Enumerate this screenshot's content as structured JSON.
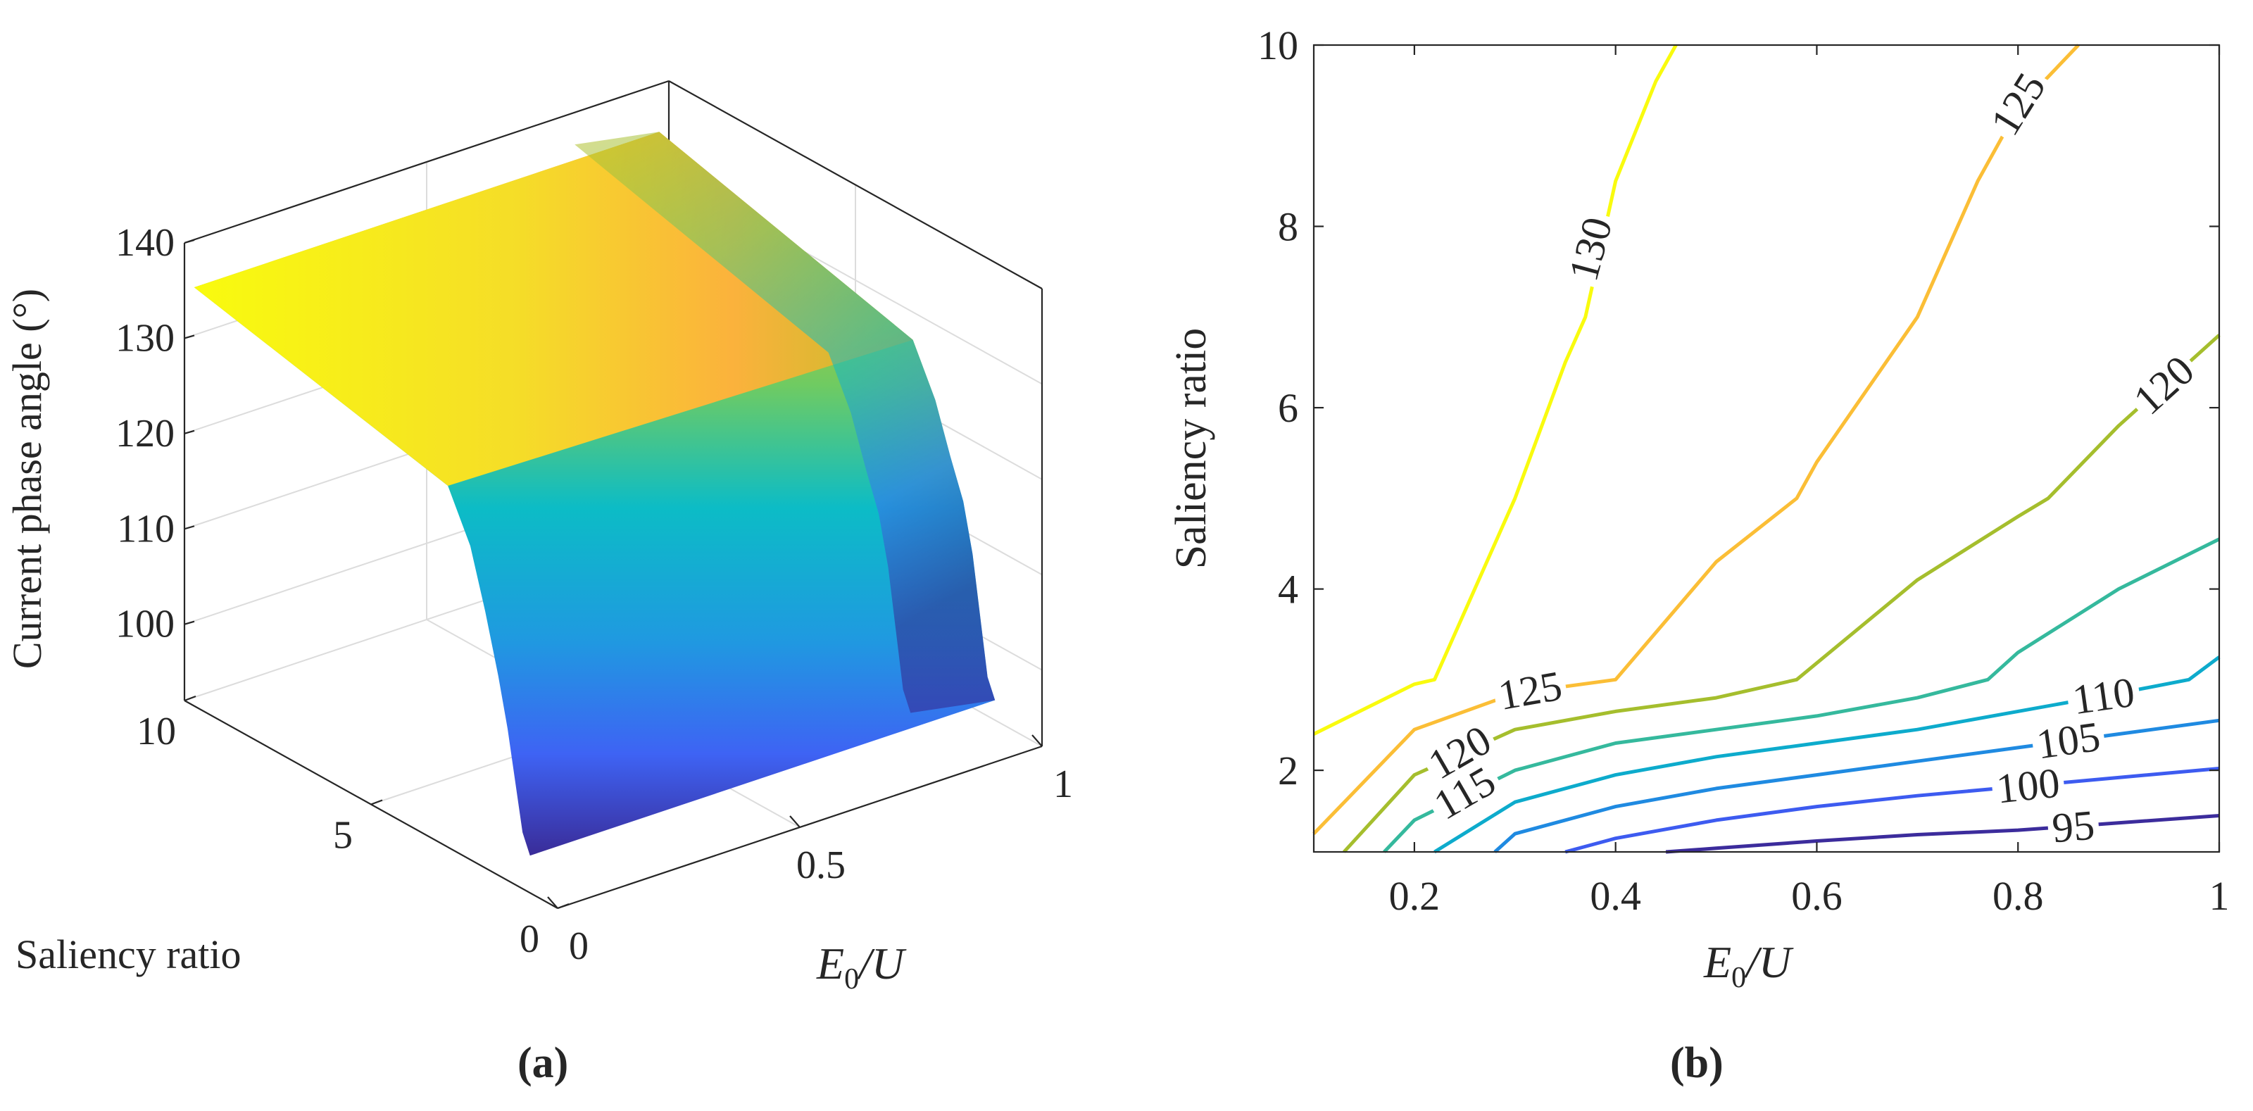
{
  "chart_data": [
    {
      "type": "surface",
      "panel_label": "(a)",
      "zlabel": "Current phase angle (°)",
      "xlabel_main": "E",
      "xlabel_sub": "0",
      "xlabel_tail": "/U",
      "ylabel": "Saliency ratio",
      "xlim": [
        0,
        1
      ],
      "ylim": [
        0,
        10
      ],
      "zlim": [
        92,
        140
      ],
      "z_ticks": [
        {
          "value": 100,
          "label": "100"
        },
        {
          "value": 110,
          "label": "110"
        },
        {
          "value": 120,
          "label": "120"
        },
        {
          "value": 130,
          "label": "130"
        },
        {
          "value": 140,
          "label": "140"
        }
      ],
      "x_ticks": [
        {
          "value": 0,
          "label": "0"
        },
        {
          "value": 0.5,
          "label": "0.5"
        },
        {
          "value": 1,
          "label": "1"
        }
      ],
      "y_ticks": [
        {
          "value": 0,
          "label": "0"
        },
        {
          "value": 5,
          "label": "5"
        },
        {
          "value": 10,
          "label": "10"
        }
      ],
      "surface_y": [
        10,
        3.2,
        2.6,
        2.2,
        1.85,
        1.6,
        1.4,
        1.2,
        1
      ],
      "surface_edge_x0": [
        135,
        129,
        124,
        118,
        112,
        107,
        102,
        97,
        95
      ],
      "surface_edge_x1": [
        135,
        128,
        123,
        118,
        114,
        109,
        103,
        97,
        95
      ],
      "colormap": "parula"
    },
    {
      "type": "contour",
      "panel_label": "(b)",
      "xlabel_main": "E",
      "xlabel_sub": "0",
      "xlabel_tail": "/U",
      "ylabel": "Saliency ratio",
      "xlim": [
        0.1,
        1
      ],
      "ylim": [
        1.1,
        10
      ],
      "x_ticks": [
        {
          "value": 0.2,
          "label": "0.2"
        },
        {
          "value": 0.4,
          "label": "0.4"
        },
        {
          "value": 0.6,
          "label": "0.6"
        },
        {
          "value": 0.8,
          "label": "0.8"
        },
        {
          "value": 1,
          "label": "1"
        }
      ],
      "y_ticks": [
        {
          "value": 2,
          "label": "2"
        },
        {
          "value": 4,
          "label": "4"
        },
        {
          "value": 6,
          "label": "6"
        },
        {
          "value": 8,
          "label": "8"
        },
        {
          "value": 10,
          "label": "10"
        }
      ],
      "series": [
        {
          "name": "130",
          "color": "#f9fb0e",
          "points": [
            [
              0.1,
              2.4
            ],
            [
              0.2,
              2.95
            ],
            [
              0.22,
              3.0
            ],
            [
              0.3,
              5.0
            ],
            [
              0.35,
              6.5
            ],
            [
              0.37,
              7.0
            ],
            [
              0.38,
              7.5
            ],
            [
              0.4,
              8.5
            ],
            [
              0.44,
              9.6
            ],
            [
              0.46,
              10
            ]
          ]
        },
        {
          "name": "125",
          "color": "#fbbe36",
          "points": [
            [
              0.1,
              1.3
            ],
            [
              0.2,
              2.45
            ],
            [
              0.3,
              2.85
            ],
            [
              0.4,
              3.0
            ],
            [
              0.5,
              4.3
            ],
            [
              0.58,
              5.0
            ],
            [
              0.6,
              5.4
            ],
            [
              0.7,
              7.0
            ],
            [
              0.76,
              8.5
            ],
            [
              0.8,
              9.3
            ],
            [
              0.86,
              10
            ]
          ]
        },
        {
          "name": "120",
          "color": "#a5be2d",
          "points": [
            [
              0.13,
              1.1
            ],
            [
              0.2,
              1.95
            ],
            [
              0.3,
              2.45
            ],
            [
              0.4,
              2.65
            ],
            [
              0.5,
              2.8
            ],
            [
              0.58,
              3.0
            ],
            [
              0.7,
              4.1
            ],
            [
              0.8,
              4.8
            ],
            [
              0.83,
              5.0
            ],
            [
              0.9,
              5.8
            ],
            [
              1.0,
              6.8
            ]
          ]
        },
        {
          "name": "115",
          "color": "#35b99d",
          "points": [
            [
              0.17,
              1.1
            ],
            [
              0.2,
              1.45
            ],
            [
              0.3,
              2.0
            ],
            [
              0.4,
              2.3
            ],
            [
              0.5,
              2.45
            ],
            [
              0.6,
              2.6
            ],
            [
              0.7,
              2.8
            ],
            [
              0.77,
              3.0
            ],
            [
              0.8,
              3.3
            ],
            [
              0.9,
              4.0
            ],
            [
              1.0,
              4.55
            ]
          ]
        },
        {
          "name": "110",
          "color": "#0dabcc",
          "points": [
            [
              0.22,
              1.1
            ],
            [
              0.3,
              1.65
            ],
            [
              0.4,
              1.95
            ],
            [
              0.5,
              2.15
            ],
            [
              0.6,
              2.3
            ],
            [
              0.7,
              2.45
            ],
            [
              0.8,
              2.65
            ],
            [
              0.9,
              2.85
            ],
            [
              0.97,
              3.0
            ],
            [
              1.0,
              3.25
            ]
          ]
        },
        {
          "name": "105",
          "color": "#1f8ae1",
          "points": [
            [
              0.28,
              1.1
            ],
            [
              0.3,
              1.3
            ],
            [
              0.4,
              1.6
            ],
            [
              0.5,
              1.8
            ],
            [
              0.6,
              1.95
            ],
            [
              0.7,
              2.1
            ],
            [
              0.8,
              2.25
            ],
            [
              0.9,
              2.4
            ],
            [
              1.0,
              2.55
            ]
          ]
        },
        {
          "name": "100",
          "color": "#3d5bf0",
          "points": [
            [
              0.35,
              1.1
            ],
            [
              0.4,
              1.25
            ],
            [
              0.5,
              1.45
            ],
            [
              0.6,
              1.6
            ],
            [
              0.7,
              1.72
            ],
            [
              0.8,
              1.82
            ],
            [
              0.9,
              1.92
            ],
            [
              1.0,
              2.02
            ]
          ]
        },
        {
          "name": "95",
          "color": "#3c2c9c",
          "points": [
            [
              0.45,
              1.1
            ],
            [
              0.5,
              1.14
            ],
            [
              0.6,
              1.22
            ],
            [
              0.7,
              1.29
            ],
            [
              0.8,
              1.34
            ],
            [
              0.9,
              1.42
            ],
            [
              1.0,
              1.5
            ]
          ]
        }
      ],
      "inline_labels": [
        {
          "text": "130",
          "series": "130",
          "at": [
            0.375,
            7.75
          ],
          "angle": -75
        },
        {
          "text": "125",
          "series": "125",
          "at": [
            0.8,
            9.35
          ],
          "angle": -58
        },
        {
          "text": "120",
          "series": "120",
          "at": [
            0.945,
            6.25
          ],
          "angle": -42
        },
        {
          "text": "125",
          "series": "125",
          "at": [
            0.315,
            2.88
          ],
          "angle": -10
        },
        {
          "text": "120",
          "series": "120",
          "at": [
            0.245,
            2.2
          ],
          "angle": -30
        },
        {
          "text": "115",
          "series": "115",
          "at": [
            0.25,
            1.75
          ],
          "angle": -30
        },
        {
          "text": "110",
          "series": "110",
          "at": [
            0.885,
            2.82
          ],
          "angle": -8
        },
        {
          "text": "105",
          "series": "105",
          "at": [
            0.85,
            2.33
          ],
          "angle": -8
        },
        {
          "text": "100",
          "series": "100",
          "at": [
            0.81,
            1.83
          ],
          "angle": -6
        },
        {
          "text": "95",
          "series": "95",
          "at": [
            0.855,
            1.38
          ],
          "angle": -5
        }
      ]
    }
  ]
}
